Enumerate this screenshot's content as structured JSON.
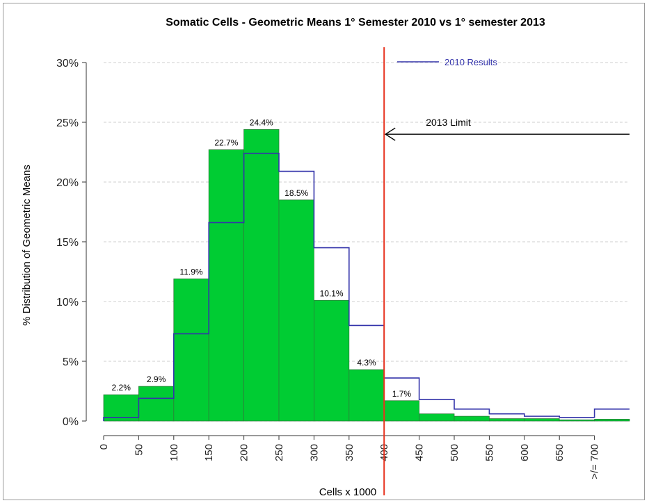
{
  "chart_data": {
    "type": "bar",
    "title": "Somatic Cells - Geometric Means 1° Semester 2010 vs 1° semester 2013",
    "xlabel": "Cells x 1000",
    "ylabel": "% Distribution of Geometric Means",
    "x_tick_labels": [
      "0",
      "50",
      "100",
      "150",
      "200",
      "250",
      "300",
      "350",
      "400",
      "450",
      "500",
      "550",
      "600",
      "650",
      ">/= 700"
    ],
    "x_tick_values": [
      0,
      50,
      100,
      150,
      200,
      250,
      300,
      350,
      400,
      450,
      500,
      550,
      600,
      650,
      700
    ],
    "y_tick_labels": [
      "0%",
      "5%",
      "10%",
      "15%",
      "20%",
      "25%",
      "30%"
    ],
    "y_tick_values": [
      0,
      5,
      10,
      15,
      20,
      25,
      30
    ],
    "xlim": [
      0,
      750
    ],
    "ylim": [
      0,
      30
    ],
    "grid": "horizontal dashed",
    "bins": [
      {
        "start": 0,
        "end": 50
      },
      {
        "start": 50,
        "end": 100
      },
      {
        "start": 100,
        "end": 150
      },
      {
        "start": 150,
        "end": 200
      },
      {
        "start": 200,
        "end": 250
      },
      {
        "start": 250,
        "end": 300
      },
      {
        "start": 300,
        "end": 350
      },
      {
        "start": 350,
        "end": 400
      },
      {
        "start": 400,
        "end": 450
      },
      {
        "start": 450,
        "end": 500
      },
      {
        "start": 500,
        "end": 550
      },
      {
        "start": 550,
        "end": 600
      },
      {
        "start": 600,
        "end": 650
      },
      {
        "start": 650,
        "end": 700
      },
      {
        "start": 700,
        "end": 750
      }
    ],
    "series": [
      {
        "style": "bars",
        "color": "#00cc33",
        "values": [
          2.2,
          2.9,
          11.9,
          22.7,
          24.4,
          18.5,
          10.1,
          4.3,
          1.7,
          0.6,
          0.4,
          0.2,
          0.2,
          0.1,
          0.15
        ],
        "data_labels": [
          "2.2%",
          "2.9%",
          "11.9%",
          "22.7%",
          "24.4%",
          "18.5%",
          "10.1%",
          "4.3%",
          "1.7%",
          "",
          "",
          "",
          "",
          "",
          ""
        ]
      },
      {
        "name": "2010 Results",
        "style": "step",
        "color": "#3333aa",
        "values": [
          0.3,
          1.9,
          7.3,
          16.6,
          22.4,
          20.9,
          14.5,
          8.0,
          3.6,
          1.8,
          1.0,
          0.6,
          0.4,
          0.3,
          1.0
        ]
      }
    ],
    "legend": {
      "label": "2010 Results",
      "position": "top-right"
    },
    "limit_line": {
      "x": 400,
      "color": "#e8331f",
      "label": "2013 Limit",
      "arrow_y": 24
    }
  }
}
